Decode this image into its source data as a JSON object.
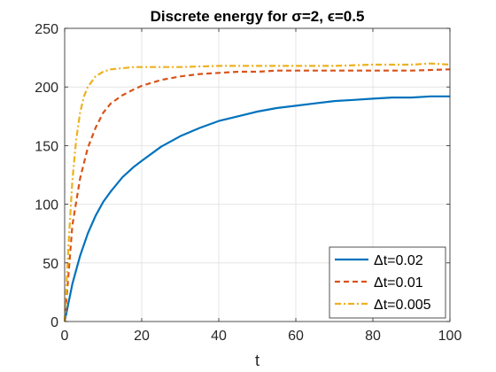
{
  "chart_data": {
    "type": "line",
    "title": "Discrete energy for σ=2, ϵ=0.5",
    "xlabel": "t",
    "ylabel": "",
    "xlim": [
      0,
      100
    ],
    "ylim": [
      0,
      250
    ],
    "xticks": [
      0,
      20,
      40,
      60,
      80,
      100
    ],
    "yticks": [
      0,
      50,
      100,
      150,
      200,
      250
    ],
    "grid": true,
    "legend_position": "bottom-right",
    "series": [
      {
        "name": "Δt=0.02",
        "color": "#0072BD",
        "style": "solid",
        "x": [
          0,
          2,
          4,
          6,
          8,
          10,
          12,
          15,
          18,
          20,
          25,
          30,
          35,
          40,
          45,
          50,
          55,
          60,
          65,
          70,
          75,
          80,
          85,
          90,
          95,
          100
        ],
        "y": [
          0,
          32,
          56,
          75,
          90,
          102,
          111,
          123,
          132,
          137,
          149,
          158,
          165,
          171,
          175,
          179,
          182,
          184,
          186,
          188,
          189,
          190,
          191,
          191,
          192,
          192
        ]
      },
      {
        "name": "Δt=0.01",
        "color": "#D95319",
        "style": "dashed",
        "x": [
          0,
          1,
          2,
          4,
          6,
          8,
          10,
          12,
          15,
          18,
          20,
          25,
          30,
          35,
          40,
          45,
          50,
          55,
          60,
          70,
          80,
          90,
          100
        ],
        "y": [
          0,
          40,
          82,
          122,
          148,
          165,
          178,
          186,
          193,
          198,
          201,
          206,
          209,
          211,
          212,
          213,
          213,
          214,
          214,
          214,
          214,
          214,
          215
        ]
      },
      {
        "name": "Δt=0.005",
        "color": "#EDB120",
        "style": "dashdot",
        "x": [
          0,
          1,
          2,
          3,
          4,
          5,
          6,
          8,
          10,
          12,
          15,
          18,
          20,
          25,
          30,
          40,
          50,
          60,
          70,
          80,
          90,
          95,
          100
        ],
        "y": [
          0,
          65,
          120,
          155,
          178,
          192,
          200,
          209,
          213,
          215,
          216,
          217,
          217,
          217,
          217,
          218,
          218,
          218,
          218,
          219,
          219,
          220,
          219
        ]
      }
    ]
  }
}
